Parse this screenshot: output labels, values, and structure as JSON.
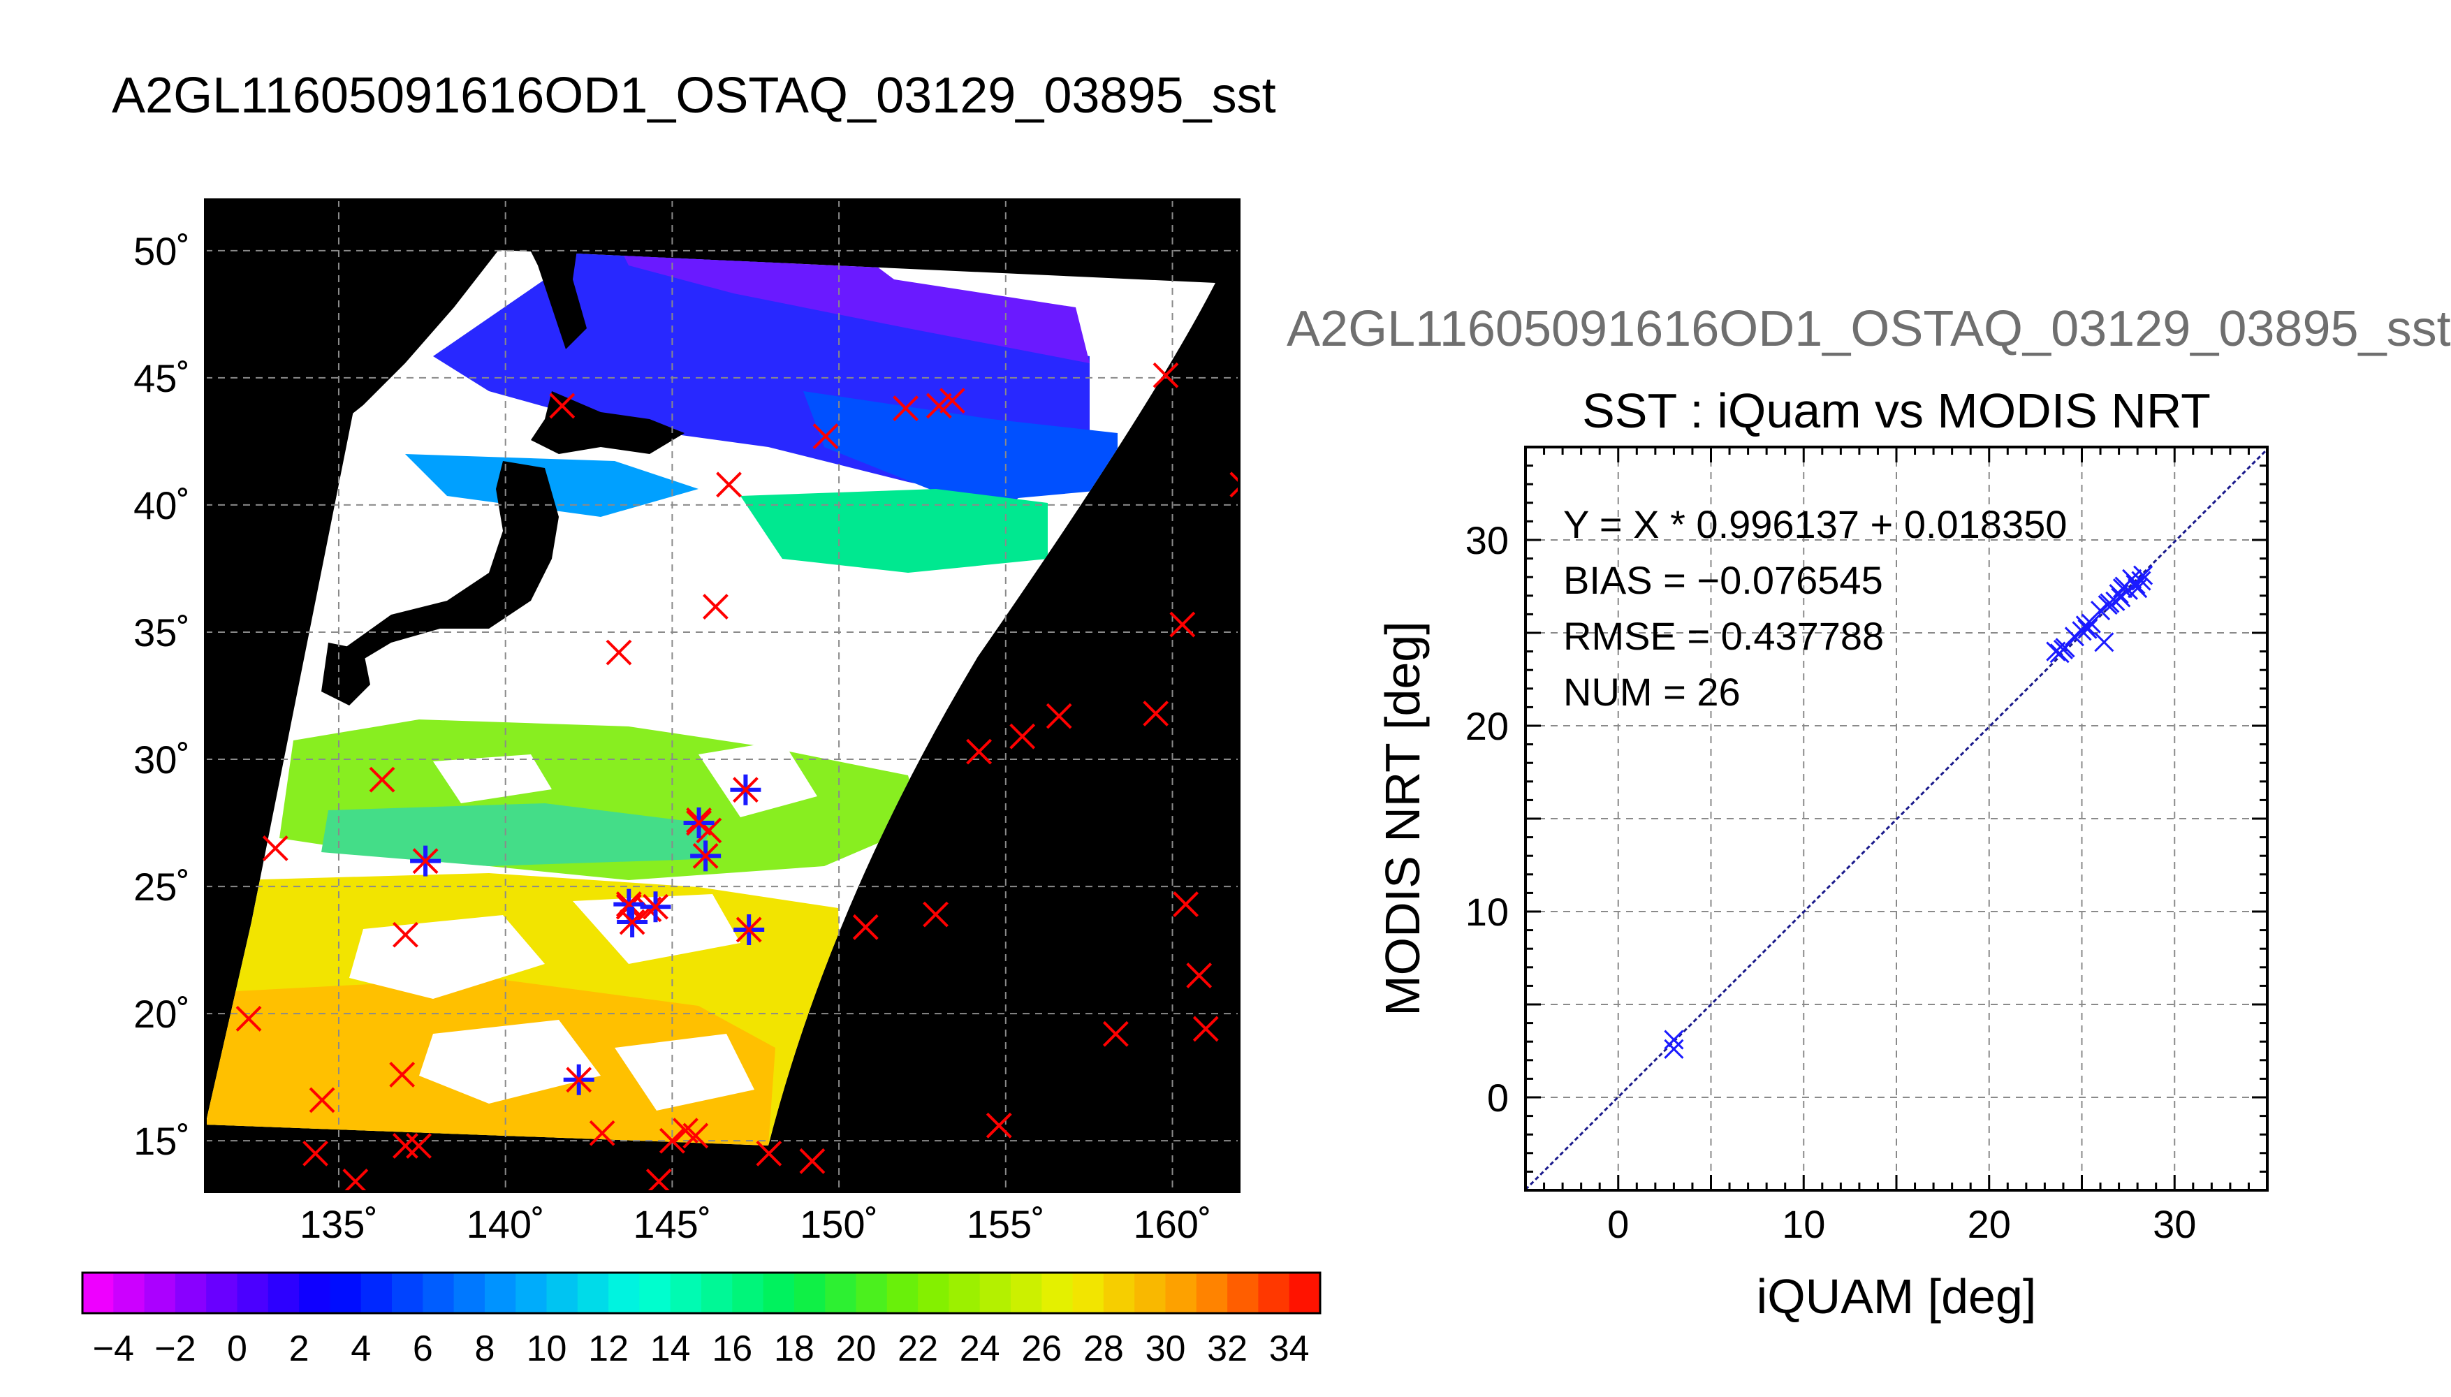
{
  "header": {
    "title": "A2GL11605091616OD1_OSTAQ_03129_03895_sst"
  },
  "map": {
    "lat_labels": [
      "50˚",
      "45˚",
      "40˚",
      "35˚",
      "30˚",
      "25˚",
      "20˚",
      "15˚"
    ],
    "lon_labels": [
      "135˚",
      "140˚",
      "145˚",
      "150˚",
      "155˚",
      "160˚"
    ],
    "colorbar_labels": [
      "−4",
      "−2",
      "0",
      "2",
      "4",
      "6",
      "8",
      "10",
      "12",
      "14",
      "16",
      "18",
      "20",
      "22",
      "24",
      "26",
      "28",
      "30",
      "32",
      "34"
    ],
    "colors": {
      "land": "#000000",
      "cloud": "#ffffff",
      "marker_iquam": "#ff0000",
      "marker_match": "#1a1aff"
    }
  },
  "scatter": {
    "file_title": "A2GL11605091616OD1_OSTAQ_03129_03895_sst",
    "title": "SST : iQuam vs MODIS NRT",
    "xlabel": "iQUAM [deg]",
    "ylabel": "MODIS NRT [deg]",
    "x_ticks": [
      "0",
      "10",
      "20",
      "30"
    ],
    "y_ticks": [
      "0",
      "10",
      "20",
      "30"
    ],
    "stats": {
      "equation": "Y = X * 0.996137 + 0.018350",
      "bias": "BIAS = −0.076545",
      "rmse": "RMSE = 0.437788",
      "num": "NUM = 26"
    }
  },
  "chart_data": [
    {
      "type": "heatmap",
      "title": "A2GL11605091616OD1_OSTAQ_03129_03895_sst",
      "xlim": [
        131,
        162
      ],
      "ylim": [
        13,
        52
      ],
      "x_ticks": [
        135,
        140,
        145,
        150,
        155,
        160
      ],
      "y_ticks": [
        50,
        45,
        40,
        35,
        30,
        25,
        20,
        15
      ],
      "colorbar": {
        "min": -5,
        "max": 35,
        "ticks": [
          -4,
          -2,
          0,
          2,
          4,
          6,
          8,
          10,
          12,
          14,
          16,
          18,
          20,
          22,
          24,
          26,
          28,
          30,
          32,
          34
        ]
      },
      "iquam_points": [
        [
          159.8,
          45.1
        ],
        [
          152.0,
          43.8
        ],
        [
          153.0,
          43.9
        ],
        [
          153.4,
          44.1
        ],
        [
          141.7,
          43.9
        ],
        [
          149.6,
          42.7
        ],
        [
          146.7,
          40.8
        ],
        [
          162.1,
          40.8
        ],
        [
          146.3,
          36.0
        ],
        [
          143.4,
          34.2
        ],
        [
          160.3,
          35.3
        ],
        [
          136.3,
          29.2
        ],
        [
          154.2,
          30.3
        ],
        [
          155.5,
          30.9
        ],
        [
          156.6,
          31.7
        ],
        [
          159.5,
          31.8
        ],
        [
          133.1,
          26.5
        ],
        [
          137.0,
          23.1
        ],
        [
          143.7,
          24.2
        ],
        [
          144.3,
          24.1
        ],
        [
          145.8,
          27.6
        ],
        [
          146.1,
          27.2
        ],
        [
          150.8,
          23.4
        ],
        [
          152.9,
          23.9
        ],
        [
          160.4,
          24.3
        ],
        [
          160.8,
          21.5
        ],
        [
          161.0,
          19.4
        ],
        [
          158.3,
          19.2
        ],
        [
          132.3,
          19.8
        ],
        [
          134.5,
          16.6
        ],
        [
          136.9,
          17.6
        ],
        [
          134.3,
          14.5
        ],
        [
          135.5,
          13.4
        ],
        [
          137.0,
          14.8
        ],
        [
          137.4,
          14.8
        ],
        [
          142.9,
          15.3
        ],
        [
          145.0,
          15.0
        ],
        [
          145.4,
          15.4
        ],
        [
          145.7,
          15.2
        ],
        [
          144.6,
          13.4
        ],
        [
          147.9,
          14.5
        ],
        [
          149.2,
          14.2
        ],
        [
          154.8,
          15.6
        ]
      ],
      "matchup_points": [
        [
          137.6,
          26.0
        ],
        [
          147.2,
          28.8
        ],
        [
          145.8,
          27.5
        ],
        [
          146.0,
          26.2
        ],
        [
          143.7,
          24.3
        ],
        [
          144.5,
          24.2
        ],
        [
          147.3,
          23.3
        ],
        [
          142.2,
          17.4
        ],
        [
          143.8,
          23.6
        ]
      ]
    },
    {
      "type": "scatter",
      "title": "SST : iQuam vs MODIS NRT",
      "xlabel": "iQUAM [deg]",
      "ylabel": "MODIS NRT [deg]",
      "xlim": [
        -5,
        35
      ],
      "ylim": [
        -5,
        35
      ],
      "x_ticks": [
        0,
        10,
        20,
        30
      ],
      "y_ticks": [
        0,
        10,
        20,
        30
      ],
      "grid": true,
      "regression": {
        "slope": 0.996137,
        "intercept": 0.01835
      },
      "series": [
        {
          "x": [
            3.0,
            3.0,
            23.6,
            23.8,
            24.0,
            24.1,
            25.0,
            25.2,
            25.5,
            26.0,
            26.2,
            26.4,
            26.8,
            27.0,
            27.1,
            27.3,
            27.5,
            27.7,
            28.0,
            28.2,
            28.3,
            24.6,
            25.3,
            26.5,
            27.2,
            27.9
          ],
          "y": [
            2.6,
            3.1,
            24.0,
            23.9,
            24.1,
            24.2,
            25.1,
            25.4,
            25.5,
            26.2,
            24.5,
            26.5,
            26.7,
            27.1,
            26.9,
            27.5,
            27.3,
            27.9,
            27.4,
            27.8,
            28.1,
            24.8,
            25.2,
            26.6,
            27.4,
            27.6
          ]
        }
      ]
    }
  ]
}
